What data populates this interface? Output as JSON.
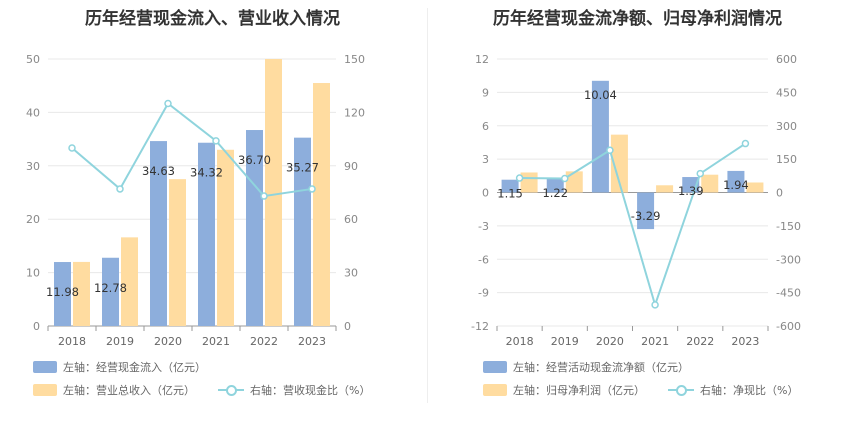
{
  "colors": {
    "bar_primary": "#8daedc",
    "bar_secondary": "#ffdca0",
    "line": "#8fd4dd",
    "grid": "#e8e8e8"
  },
  "left": {
    "title": "历年经营现金流入、营业收入情况",
    "legend": {
      "primary": "左轴：经营现金流入（亿元）",
      "secondary": "左轴：营业总收入（亿元）",
      "line": "右轴：营收现金比（%）"
    }
  },
  "right": {
    "title": "历年经营现金流净额、归母净利润情况",
    "legend": {
      "primary": "左轴：经营活动现金流净额（亿元）",
      "secondary": "左轴：归母净利润（亿元）",
      "line": "右轴：净现比（%）"
    }
  },
  "chart_data": [
    {
      "type": "bar",
      "title": "历年经营现金流入、营业收入情况",
      "categories": [
        "2018",
        "2019",
        "2020",
        "2021",
        "2022",
        "2023"
      ],
      "ylim": [
        0,
        50
      ],
      "yticks": [
        "0",
        "10",
        "20",
        "30",
        "40",
        "50"
      ],
      "y2lim": [
        0,
        150
      ],
      "y2ticks": [
        "0",
        "30",
        "60",
        "90",
        "120",
        "150"
      ],
      "series": [
        {
          "name": "左轴：经营现金流入（亿元）",
          "type": "bar",
          "axis": "left",
          "values": [
            11.98,
            12.78,
            34.63,
            34.32,
            36.7,
            35.27
          ],
          "labels": [
            "11.98",
            "12.78",
            "34.63",
            "34.32",
            "36.70",
            "35.27"
          ]
        },
        {
          "name": "左轴：营业总收入（亿元）",
          "type": "bar",
          "axis": "left",
          "values": [
            12.0,
            16.6,
            27.5,
            33.0,
            50.0,
            45.5
          ]
        },
        {
          "name": "右轴：营收现金比（%）",
          "type": "line",
          "axis": "right",
          "values": [
            100,
            77,
            125,
            104,
            73,
            77
          ]
        }
      ],
      "grid": true,
      "legend_position": "bottom"
    },
    {
      "type": "bar",
      "title": "历年经营现金流净额、归母净利润情况",
      "categories": [
        "2018",
        "2019",
        "2020",
        "2021",
        "2022",
        "2023"
      ],
      "ylim": [
        -12,
        12
      ],
      "yticks": [
        "-12",
        "-9",
        "-6",
        "-3",
        "0",
        "3",
        "6",
        "9",
        "12"
      ],
      "y2lim": [
        -600,
        600
      ],
      "y2ticks": [
        "-600",
        "-450",
        "-300",
        "-150",
        "0",
        "150",
        "300",
        "450",
        "600"
      ],
      "series": [
        {
          "name": "左轴：经营活动现金流净额（亿元）",
          "type": "bar",
          "axis": "left",
          "values": [
            1.15,
            1.22,
            10.04,
            -3.29,
            1.39,
            1.94
          ],
          "labels": [
            "1.15",
            "1.22",
            "10.04",
            "-3.29",
            "1.39",
            "1.94"
          ]
        },
        {
          "name": "左轴：归母净利润（亿元）",
          "type": "bar",
          "axis": "left",
          "values": [
            1.8,
            1.9,
            5.2,
            0.65,
            1.6,
            0.9
          ]
        },
        {
          "name": "右轴：净现比（%）",
          "type": "line",
          "axis": "right",
          "values": [
            65,
            63,
            190,
            -505,
            85,
            220
          ]
        }
      ],
      "grid": true,
      "legend_position": "bottom"
    }
  ]
}
